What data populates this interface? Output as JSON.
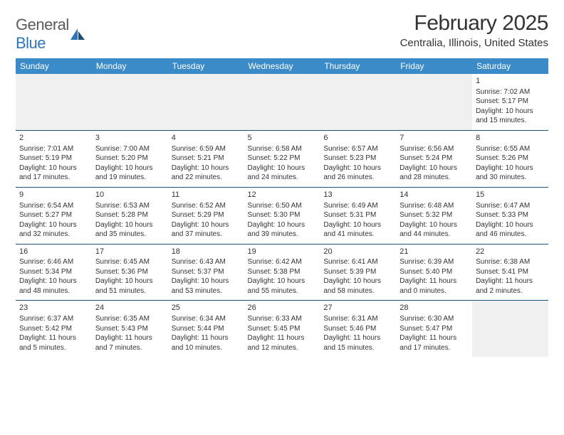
{
  "brand": {
    "name_part1": "General",
    "name_part2": "Blue"
  },
  "title": "February 2025",
  "location": "Centralia, Illinois, United States",
  "colors": {
    "header_bg": "#3b8bc9",
    "row_border": "#1f4e79",
    "brand_gray": "#5a5a5a",
    "brand_blue": "#2e75b6"
  },
  "weekdays": [
    "Sunday",
    "Monday",
    "Tuesday",
    "Wednesday",
    "Thursday",
    "Friday",
    "Saturday"
  ],
  "grid": [
    [
      null,
      null,
      null,
      null,
      null,
      null,
      {
        "day": "1",
        "sunrise": "Sunrise: 7:02 AM",
        "sunset": "Sunset: 5:17 PM",
        "daylight": "Daylight: 10 hours and 15 minutes."
      }
    ],
    [
      {
        "day": "2",
        "sunrise": "Sunrise: 7:01 AM",
        "sunset": "Sunset: 5:19 PM",
        "daylight": "Daylight: 10 hours and 17 minutes."
      },
      {
        "day": "3",
        "sunrise": "Sunrise: 7:00 AM",
        "sunset": "Sunset: 5:20 PM",
        "daylight": "Daylight: 10 hours and 19 minutes."
      },
      {
        "day": "4",
        "sunrise": "Sunrise: 6:59 AM",
        "sunset": "Sunset: 5:21 PM",
        "daylight": "Daylight: 10 hours and 22 minutes."
      },
      {
        "day": "5",
        "sunrise": "Sunrise: 6:58 AM",
        "sunset": "Sunset: 5:22 PM",
        "daylight": "Daylight: 10 hours and 24 minutes."
      },
      {
        "day": "6",
        "sunrise": "Sunrise: 6:57 AM",
        "sunset": "Sunset: 5:23 PM",
        "daylight": "Daylight: 10 hours and 26 minutes."
      },
      {
        "day": "7",
        "sunrise": "Sunrise: 6:56 AM",
        "sunset": "Sunset: 5:24 PM",
        "daylight": "Daylight: 10 hours and 28 minutes."
      },
      {
        "day": "8",
        "sunrise": "Sunrise: 6:55 AM",
        "sunset": "Sunset: 5:26 PM",
        "daylight": "Daylight: 10 hours and 30 minutes."
      }
    ],
    [
      {
        "day": "9",
        "sunrise": "Sunrise: 6:54 AM",
        "sunset": "Sunset: 5:27 PM",
        "daylight": "Daylight: 10 hours and 32 minutes."
      },
      {
        "day": "10",
        "sunrise": "Sunrise: 6:53 AM",
        "sunset": "Sunset: 5:28 PM",
        "daylight": "Daylight: 10 hours and 35 minutes."
      },
      {
        "day": "11",
        "sunrise": "Sunrise: 6:52 AM",
        "sunset": "Sunset: 5:29 PM",
        "daylight": "Daylight: 10 hours and 37 minutes."
      },
      {
        "day": "12",
        "sunrise": "Sunrise: 6:50 AM",
        "sunset": "Sunset: 5:30 PM",
        "daylight": "Daylight: 10 hours and 39 minutes."
      },
      {
        "day": "13",
        "sunrise": "Sunrise: 6:49 AM",
        "sunset": "Sunset: 5:31 PM",
        "daylight": "Daylight: 10 hours and 41 minutes."
      },
      {
        "day": "14",
        "sunrise": "Sunrise: 6:48 AM",
        "sunset": "Sunset: 5:32 PM",
        "daylight": "Daylight: 10 hours and 44 minutes."
      },
      {
        "day": "15",
        "sunrise": "Sunrise: 6:47 AM",
        "sunset": "Sunset: 5:33 PM",
        "daylight": "Daylight: 10 hours and 46 minutes."
      }
    ],
    [
      {
        "day": "16",
        "sunrise": "Sunrise: 6:46 AM",
        "sunset": "Sunset: 5:34 PM",
        "daylight": "Daylight: 10 hours and 48 minutes."
      },
      {
        "day": "17",
        "sunrise": "Sunrise: 6:45 AM",
        "sunset": "Sunset: 5:36 PM",
        "daylight": "Daylight: 10 hours and 51 minutes."
      },
      {
        "day": "18",
        "sunrise": "Sunrise: 6:43 AM",
        "sunset": "Sunset: 5:37 PM",
        "daylight": "Daylight: 10 hours and 53 minutes."
      },
      {
        "day": "19",
        "sunrise": "Sunrise: 6:42 AM",
        "sunset": "Sunset: 5:38 PM",
        "daylight": "Daylight: 10 hours and 55 minutes."
      },
      {
        "day": "20",
        "sunrise": "Sunrise: 6:41 AM",
        "sunset": "Sunset: 5:39 PM",
        "daylight": "Daylight: 10 hours and 58 minutes."
      },
      {
        "day": "21",
        "sunrise": "Sunrise: 6:39 AM",
        "sunset": "Sunset: 5:40 PM",
        "daylight": "Daylight: 11 hours and 0 minutes."
      },
      {
        "day": "22",
        "sunrise": "Sunrise: 6:38 AM",
        "sunset": "Sunset: 5:41 PM",
        "daylight": "Daylight: 11 hours and 2 minutes."
      }
    ],
    [
      {
        "day": "23",
        "sunrise": "Sunrise: 6:37 AM",
        "sunset": "Sunset: 5:42 PM",
        "daylight": "Daylight: 11 hours and 5 minutes."
      },
      {
        "day": "24",
        "sunrise": "Sunrise: 6:35 AM",
        "sunset": "Sunset: 5:43 PM",
        "daylight": "Daylight: 11 hours and 7 minutes."
      },
      {
        "day": "25",
        "sunrise": "Sunrise: 6:34 AM",
        "sunset": "Sunset: 5:44 PM",
        "daylight": "Daylight: 11 hours and 10 minutes."
      },
      {
        "day": "26",
        "sunrise": "Sunrise: 6:33 AM",
        "sunset": "Sunset: 5:45 PM",
        "daylight": "Daylight: 11 hours and 12 minutes."
      },
      {
        "day": "27",
        "sunrise": "Sunrise: 6:31 AM",
        "sunset": "Sunset: 5:46 PM",
        "daylight": "Daylight: 11 hours and 15 minutes."
      },
      {
        "day": "28",
        "sunrise": "Sunrise: 6:30 AM",
        "sunset": "Sunset: 5:47 PM",
        "daylight": "Daylight: 11 hours and 17 minutes."
      },
      null
    ]
  ]
}
